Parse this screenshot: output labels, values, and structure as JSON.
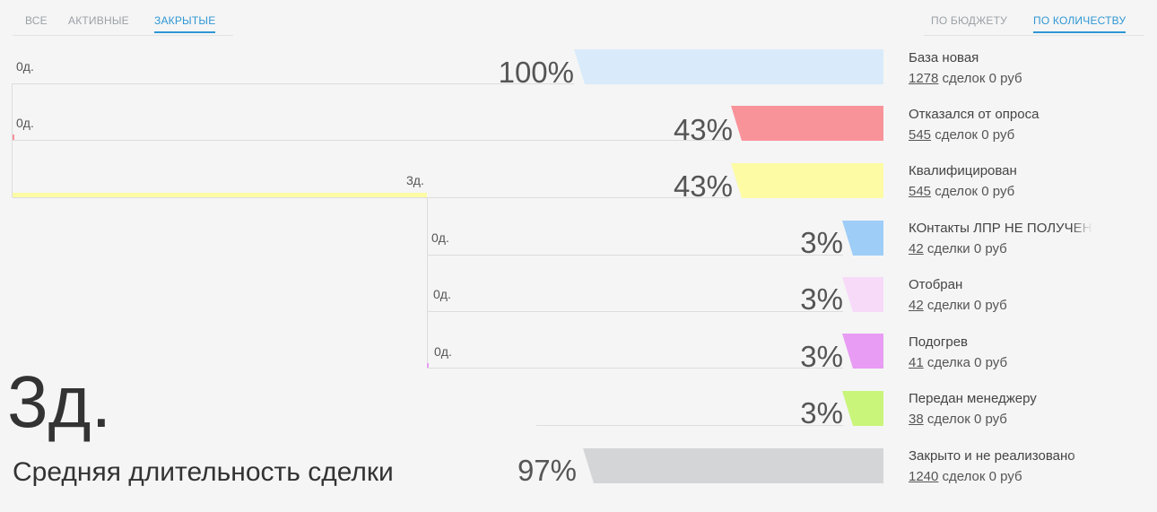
{
  "status_tabs": [
    "ВСЕ",
    "АКТИВНЫЕ",
    "ЗАКРЫТЫЕ"
  ],
  "mode_tabs": [
    "ПО БЮДЖЕТУ",
    "ПО КОЛИЧЕСТВУ"
  ],
  "stages": [
    {
      "name": "База новая",
      "percent": "100%",
      "count": "1278",
      "meta": " сделок 0 руб",
      "duration": "0д.",
      "color": "#d9ebfa"
    },
    {
      "name": "Отказался от опроса",
      "percent": "43%",
      "count": "545",
      "meta": " сделок 0 руб",
      "duration": "0д.",
      "color": "#f9939a"
    },
    {
      "name": "Квалифицирован",
      "percent": "43%",
      "count": "545",
      "meta": " сделок 0 руб",
      "duration": "3д.",
      "color": "#fdfba4"
    },
    {
      "name": "КОнтакты ЛПР НЕ ПОЛУЧЕНЫ",
      "percent": "3%",
      "count": "42",
      "meta": " сделки 0 руб",
      "duration": "0д.",
      "color": "#9ecdf7"
    },
    {
      "name": "Отобран",
      "percent": "3%",
      "count": "42",
      "meta": " сделки 0 руб",
      "duration": "0д.",
      "color": "#f7d9f8"
    },
    {
      "name": "Подогрев",
      "percent": "3%",
      "count": "41",
      "meta": " сделка 0 руб",
      "duration": "0д.",
      "color": "#e89cf3"
    },
    {
      "name": "Передан менеджеру",
      "percent": "3%",
      "count": "38",
      "meta": " сделок 0 руб",
      "duration": "",
      "color": "#c9f57a"
    },
    {
      "name": "Закрыто и не реализовано",
      "percent": "97%",
      "count": "1240",
      "meta": " сделок 0 руб",
      "duration": "",
      "color": "#d3d5d7"
    }
  ],
  "summary": {
    "value": "3д.",
    "caption": "Средняя длительность сделки"
  }
}
